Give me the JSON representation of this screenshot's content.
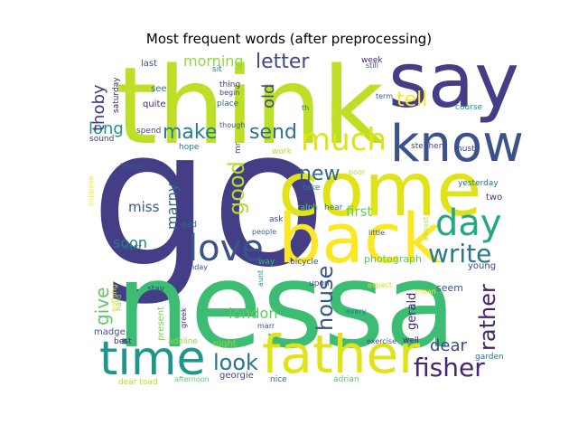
{
  "chart_data": {
    "type": "wordcloud",
    "title": "Most frequent words (after preprocessing)",
    "colormap": "viridis",
    "background": "#ffffff",
    "words": [
      {
        "text": "go",
        "color": "#433e85"
      },
      {
        "text": "nessa",
        "color": "#3dbc74"
      },
      {
        "text": "think",
        "color": "#bddf26"
      },
      {
        "text": "come",
        "color": "#dfe318"
      },
      {
        "text": "say",
        "color": "#433e85"
      },
      {
        "text": "know",
        "color": "#3b528b"
      },
      {
        "text": "back",
        "color": "#fde725"
      },
      {
        "text": "father",
        "color": "#dfe318"
      },
      {
        "text": "time",
        "color": "#1f968b"
      },
      {
        "text": "day",
        "color": "#22a884"
      },
      {
        "text": "love",
        "color": "#3b528b"
      },
      {
        "text": "much",
        "color": "#dfe318"
      },
      {
        "text": "write",
        "color": "#2a788e"
      },
      {
        "text": "fisher",
        "color": "#482475"
      },
      {
        "text": "house",
        "color": "#39568c"
      },
      {
        "text": "rather",
        "color": "#482173"
      },
      {
        "text": "good",
        "color": "#b5de2b"
      },
      {
        "text": "look",
        "color": "#2c728e"
      },
      {
        "text": "letter",
        "color": "#3e4a89"
      },
      {
        "text": "make",
        "color": "#277f8e"
      },
      {
        "text": "tell",
        "color": "#fde725"
      },
      {
        "text": "new",
        "color": "#31688e"
      },
      {
        "text": "send",
        "color": "#2c728e"
      },
      {
        "text": "morning",
        "color": "#90d743"
      },
      {
        "text": "long",
        "color": "#21918c"
      },
      {
        "text": "give",
        "color": "#5ec962"
      },
      {
        "text": "dear",
        "color": "#3e4989"
      },
      {
        "text": "london",
        "color": "#5ec962"
      },
      {
        "text": "thoby",
        "color": "#453781"
      },
      {
        "text": "old",
        "color": "#3e4a89"
      },
      {
        "text": "soon",
        "color": "#2a788e"
      },
      {
        "text": "marny",
        "color": "#31688e"
      },
      {
        "text": "first",
        "color": "#6ece58"
      },
      {
        "text": "miss",
        "color": "#38588c"
      },
      {
        "text": "gerald",
        "color": "#482878"
      },
      {
        "text": "photograph",
        "color": "#5ec962"
      },
      {
        "text": "seem",
        "color": "#3b528b"
      },
      {
        "text": "young",
        "color": "#3e4989"
      },
      {
        "text": "georgie",
        "color": "#3e4989"
      },
      {
        "text": "madge",
        "color": "#3b528b"
      },
      {
        "text": "present",
        "color": "#7ad151"
      },
      {
        "text": "saturday",
        "color": "#482475"
      },
      {
        "text": "last",
        "color": "#3b528b"
      },
      {
        "text": "see",
        "color": "#2c728e"
      },
      {
        "text": "quite",
        "color": "#482878"
      },
      {
        "text": "spend",
        "color": "#3e4a89"
      },
      {
        "text": "sound",
        "color": "#453781"
      },
      {
        "text": "hope",
        "color": "#2a788e"
      },
      {
        "text": "home",
        "color": "#38588c"
      },
      {
        "text": "best",
        "color": "#482475"
      },
      {
        "text": "bed",
        "color": "#31688e"
      },
      {
        "text": "next",
        "color": "#2a788e"
      },
      {
        "text": "sunday",
        "color": "#3b528b"
      },
      {
        "text": "stay",
        "color": "#3e4a89"
      },
      {
        "text": "adeline",
        "color": "#90d743"
      },
      {
        "text": "night",
        "color": "#90d743"
      },
      {
        "text": "nothing",
        "color": "#d2e21b"
      },
      {
        "text": "hard",
        "color": "#90d743"
      },
      {
        "text": "greek",
        "color": "#482878"
      },
      {
        "text": "marr",
        "color": "#3b528b"
      },
      {
        "text": "aunt",
        "color": "#21918c"
      },
      {
        "text": "way",
        "color": "#35b779"
      },
      {
        "text": "people",
        "color": "#31688e"
      },
      {
        "text": "ask",
        "color": "#3e4a89"
      },
      {
        "text": "nice",
        "color": "#31688e"
      },
      {
        "text": "adrian",
        "color": "#5ec962"
      },
      {
        "text": "afternoon",
        "color": "#5ec962"
      },
      {
        "text": "dear toad",
        "color": "#b5de2b"
      },
      {
        "text": "sit",
        "color": "#2c728e"
      },
      {
        "text": "thing",
        "color": "#453781"
      },
      {
        "text": "begin",
        "color": "#433e85"
      },
      {
        "text": "place",
        "color": "#31688e"
      },
      {
        "text": "though",
        "color": "#3b528b"
      },
      {
        "text": "work",
        "color": "#b5de2b"
      },
      {
        "text": "mr",
        "color": "#3e4a89"
      },
      {
        "text": "take",
        "color": "#2a788e"
      },
      {
        "text": "ralph",
        "color": "#5ec962"
      },
      {
        "text": "hear",
        "color": "#2c728e"
      },
      {
        "text": "little",
        "color": "#3b528b"
      },
      {
        "text": "almost",
        "color": "#b5de2b"
      },
      {
        "text": "bicycle",
        "color": "#3b528b"
      },
      {
        "text": "upon",
        "color": "#3b528b"
      },
      {
        "text": "every",
        "color": "#2a788e"
      },
      {
        "text": "expect",
        "color": "#d2e21b"
      },
      {
        "text": "mean",
        "color": "#fde725"
      },
      {
        "text": "well",
        "color": "#482475"
      },
      {
        "text": "exercise",
        "color": "#3e4a89"
      },
      {
        "text": "garden",
        "color": "#2c728e"
      },
      {
        "text": "poor",
        "color": "#b5de2b"
      },
      {
        "text": "stephen",
        "color": "#3e4a89"
      },
      {
        "text": "must",
        "color": "#3e4a89"
      },
      {
        "text": "yesterday",
        "color": "#2c728e"
      },
      {
        "text": "two",
        "color": "#453781"
      },
      {
        "text": "course",
        "color": "#21918c"
      },
      {
        "text": "term",
        "color": "#3b528b"
      },
      {
        "text": "hour",
        "color": "#d2e21b"
      },
      {
        "text": "th",
        "color": "#2c728e"
      },
      {
        "text": "week",
        "color": "#482878"
      },
      {
        "text": "still",
        "color": "#3b528b"
      },
      {
        "text": "suppose",
        "color": "#fde725"
      }
    ]
  }
}
